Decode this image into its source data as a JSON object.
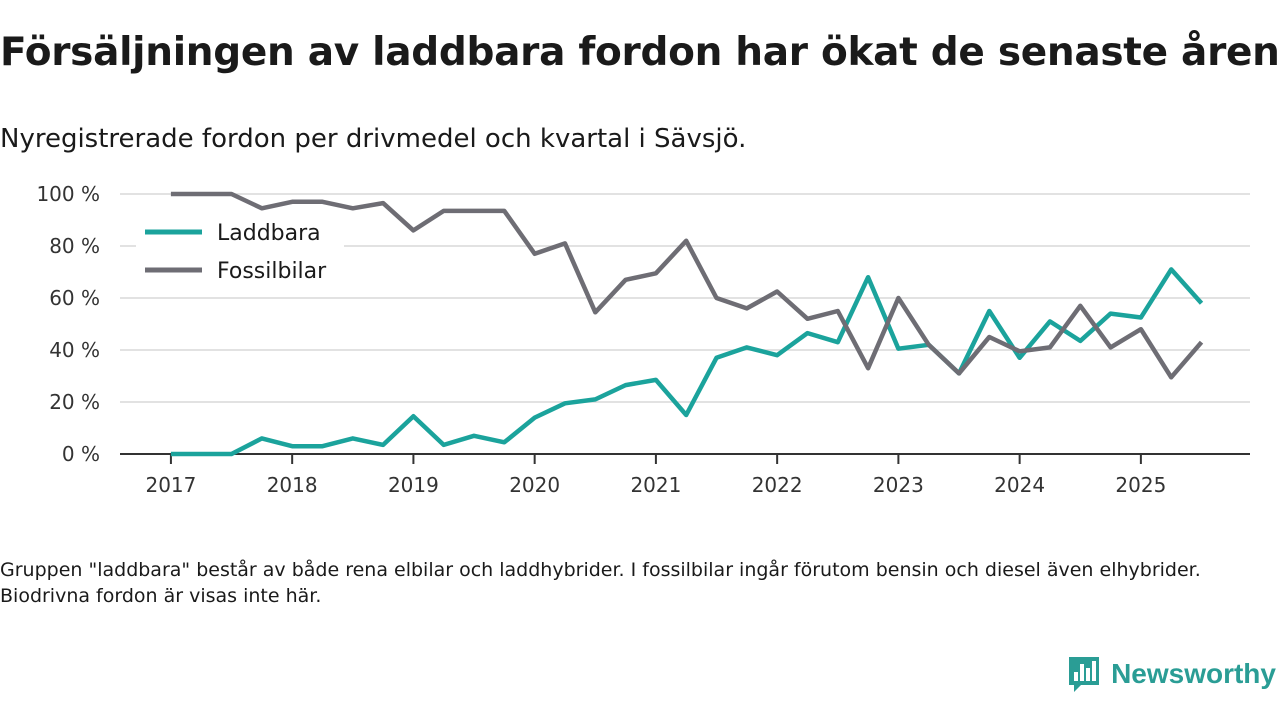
{
  "title": "Försäljningen av laddbara fordon har ökat de senaste åren",
  "subtitle": "Nyregistrerade fordon per drivmedel och kvartal i Sävsjö.",
  "footnote": "Gruppen \"laddbara\" består av både rena elbilar och laddhybrider. I fossilbilar ingår förutom bensin och diesel även elhybrider. Biodrivna fordon är visas inte här.",
  "brand": {
    "name": "Newsworthy",
    "logo_icon": "bar-chart-speech-icon"
  },
  "colors": {
    "laddbara": "#1ba39c",
    "fossil": "#6e6d74",
    "grid": "#d9d9d9",
    "axis": "#333333"
  },
  "chart_data": {
    "type": "line",
    "title": "Försäljningen av laddbara fordon har ökat de senaste åren",
    "xlabel": "",
    "ylabel": "",
    "ylim": [
      0,
      100
    ],
    "yticks": [
      0,
      20,
      40,
      60,
      80,
      100
    ],
    "ytick_labels": [
      "0 %",
      "20 %",
      "40 %",
      "60 %",
      "80 %",
      "100 %"
    ],
    "xticks": [
      2017,
      2018,
      2019,
      2020,
      2021,
      2022,
      2023,
      2024,
      2025
    ],
    "xtick_labels": [
      "2017",
      "2018",
      "2019",
      "2020",
      "2021",
      "2022",
      "2023",
      "2024",
      "2025"
    ],
    "x": [
      2017.0,
      2017.25,
      2017.5,
      2017.75,
      2018.0,
      2018.25,
      2018.5,
      2018.75,
      2019.0,
      2019.25,
      2019.5,
      2019.75,
      2020.0,
      2020.25,
      2020.5,
      2020.75,
      2021.0,
      2021.25,
      2021.5,
      2021.75,
      2022.0,
      2022.25,
      2022.5,
      2022.75,
      2023.0,
      2023.25,
      2023.5,
      2023.75,
      2024.0,
      2024.25,
      2024.5,
      2024.75,
      2025.0,
      2025.25,
      2025.5
    ],
    "legend_position": "top-left",
    "series": [
      {
        "name": "Laddbara",
        "color": "#1ba39c",
        "values": [
          0,
          0,
          0,
          6,
          3,
          3,
          6,
          3.5,
          14.5,
          3.5,
          7,
          4.5,
          14,
          19.5,
          21,
          26.5,
          28.5,
          15,
          37,
          41,
          38,
          46.5,
          43,
          68,
          40.5,
          42,
          31,
          55,
          37,
          51,
          43.5,
          54,
          52.5,
          71,
          58
        ]
      },
      {
        "name": "Fossilbilar",
        "color": "#6e6d74",
        "values": [
          100,
          100,
          100,
          94.5,
          97,
          97,
          94.5,
          96.5,
          86,
          93.5,
          93.5,
          93.5,
          77,
          81,
          54.5,
          67,
          69.5,
          82,
          60,
          56,
          62.5,
          52,
          55,
          33,
          60,
          42,
          31,
          45,
          39.5,
          41,
          57,
          41,
          48,
          29.5,
          43
        ]
      }
    ]
  }
}
